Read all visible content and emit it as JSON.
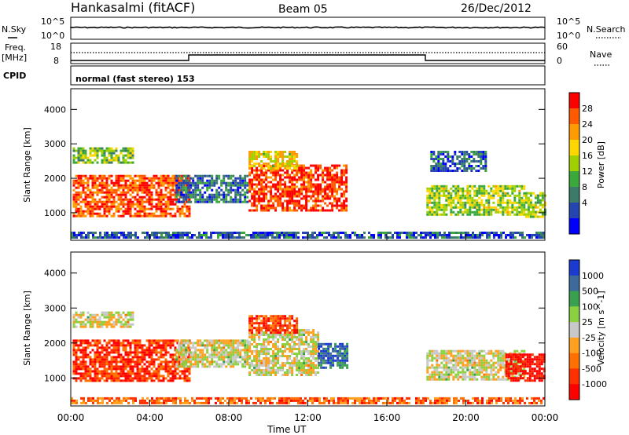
{
  "header": {
    "station": "Hankasalmi (fitACF)",
    "beam": "Beam 05",
    "date": "26/Dec/2012"
  },
  "noise_panel": {
    "left_label": "N.Sky",
    "right_label": "N.Search",
    "left_ticks": [
      "10^5",
      "10^0"
    ],
    "right_ticks": [
      "10^5",
      "10^0"
    ]
  },
  "freq_panel": {
    "left_label_1": "Freq.",
    "left_label_2": "[MHz]",
    "right_label": "Nave",
    "left_ticks": [
      "18",
      "8"
    ],
    "right_ticks": [
      "60",
      "0"
    ]
  },
  "cpid": {
    "label": "CPID",
    "mode_text": "normal (fast stereo) 153"
  },
  "time_axis": {
    "label": "Time UT",
    "ticks": [
      "00:00",
      "04:00",
      "08:00",
      "12:00",
      "16:00",
      "20:00",
      "00:00"
    ]
  },
  "chart_data": [
    {
      "type": "heatmap",
      "name": "power",
      "ylabel": "Slant Range [km]",
      "yticks": [
        1000,
        2000,
        3000,
        4000
      ],
      "ylim": [
        200,
        4600
      ],
      "xlim_hours": [
        0,
        24
      ],
      "colorbar": {
        "label": "Power [dB]",
        "ticks": [
          "28",
          "24",
          "20",
          "16",
          "12",
          "8",
          "4"
        ],
        "colors": [
          "#ff0000",
          "#ff5a00",
          "#ff9b00",
          "#ffd700",
          "#a0d000",
          "#3aa83a",
          "#3c7a6a",
          "#2545b0",
          "#0000ff"
        ]
      },
      "echo_regions": [
        {
          "t0": 0.1,
          "t1": 6.0,
          "r0": 900,
          "r1": 2100,
          "level": 0.85
        },
        {
          "t0": 0.1,
          "t1": 3.2,
          "r0": 2450,
          "r1": 2900,
          "level": 0.45
        },
        {
          "t0": 5.3,
          "t1": 9.0,
          "r0": 1300,
          "r1": 2100,
          "level": 0.25
        },
        {
          "t0": 9.0,
          "t1": 14.0,
          "r0": 1100,
          "r1": 2400,
          "level": 0.9
        },
        {
          "t0": 9.0,
          "t1": 11.5,
          "r0": 2300,
          "r1": 2800,
          "level": 0.6
        },
        {
          "t0": 18.0,
          "t1": 23.0,
          "r0": 950,
          "r1": 1800,
          "level": 0.5
        },
        {
          "t0": 18.2,
          "t1": 21.0,
          "r0": 2200,
          "r1": 2800,
          "level": 0.2
        },
        {
          "t0": 23.0,
          "t1": 24.0,
          "r0": 900,
          "r1": 1600,
          "level": 0.5
        },
        {
          "t0": 0.0,
          "t1": 24.0,
          "r0": 250,
          "r1": 450,
          "level": 0.2
        }
      ]
    },
    {
      "type": "heatmap",
      "name": "velocity",
      "ylabel": "Slant Range [km]",
      "yticks": [
        1000,
        2000,
        3000,
        4000
      ],
      "ylim": [
        200,
        4600
      ],
      "xlim_hours": [
        0,
        24
      ],
      "colorbar": {
        "label": "Velocity [m s^-1]",
        "ticks": [
          "1000",
          "500",
          "100",
          "25",
          "-25",
          "-100",
          "-500",
          "-1000"
        ],
        "colors": [
          "#1a3ad0",
          "#3c6a9a",
          "#3aa050",
          "#8ad040",
          "#c8c8c8",
          "#ffa020",
          "#ff7000",
          "#ff3000",
          "#ff0000"
        ]
      },
      "echo_regions": [
        {
          "t0": 0.1,
          "t1": 6.0,
          "r0": 900,
          "r1": 2100,
          "level": 0.15
        },
        {
          "t0": 0.1,
          "t1": 3.2,
          "r0": 2450,
          "r1": 2900,
          "level": 0.5
        },
        {
          "t0": 5.3,
          "t1": 9.0,
          "r0": 1300,
          "r1": 2100,
          "level": 0.5
        },
        {
          "t0": 9.0,
          "t1": 12.5,
          "r0": 1100,
          "r1": 2400,
          "level": 0.5
        },
        {
          "t0": 12.5,
          "t1": 14.0,
          "r0": 1300,
          "r1": 2000,
          "level": 0.85
        },
        {
          "t0": 9.0,
          "t1": 11.5,
          "r0": 2300,
          "r1": 2800,
          "level": 0.2
        },
        {
          "t0": 18.0,
          "t1": 23.0,
          "r0": 950,
          "r1": 1800,
          "level": 0.5
        },
        {
          "t0": 22.0,
          "t1": 24.0,
          "r0": 900,
          "r1": 1700,
          "level": 0.05
        },
        {
          "t0": 0.0,
          "t1": 24.0,
          "r0": 250,
          "r1": 450,
          "level": 0.25
        }
      ]
    }
  ]
}
